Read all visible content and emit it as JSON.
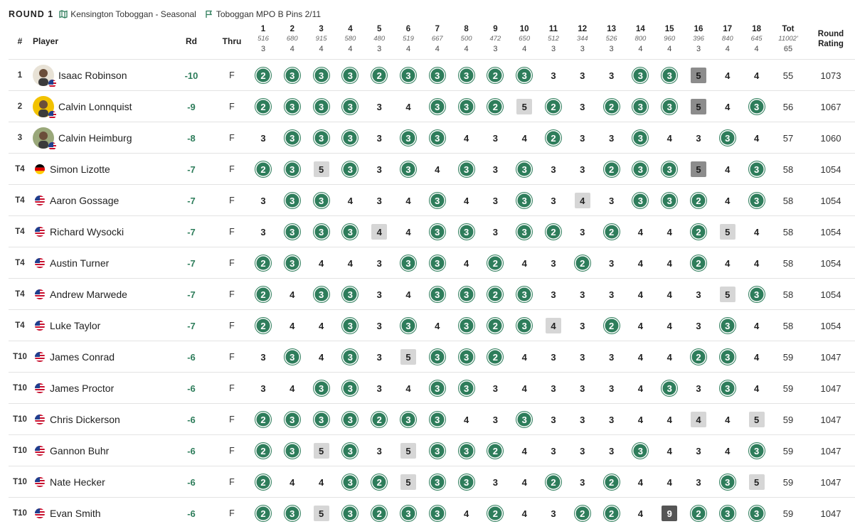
{
  "header": {
    "round": "ROUND 1",
    "course": "Kensington Toboggan - Seasonal",
    "layout": "Toboggan MPO B Pins 2/11",
    "course_icon": "map-icon",
    "layout_icon": "flag-icon"
  },
  "columns": {
    "pos": "#",
    "player": "Player",
    "rd": "Rd",
    "thru": "Thru",
    "tot": "Tot",
    "tot_dist": "11002'",
    "tot_par": "65",
    "rating1": "Round",
    "rating2": "Rating"
  },
  "holes": [
    {
      "n": "1",
      "d": "516",
      "p": "3"
    },
    {
      "n": "2",
      "d": "680",
      "p": "4"
    },
    {
      "n": "3",
      "d": "915",
      "p": "4"
    },
    {
      "n": "4",
      "d": "580",
      "p": "4"
    },
    {
      "n": "5",
      "d": "480",
      "p": "3"
    },
    {
      "n": "6",
      "d": "519",
      "p": "4"
    },
    {
      "n": "7",
      "d": "667",
      "p": "4"
    },
    {
      "n": "8",
      "d": "500",
      "p": "4"
    },
    {
      "n": "9",
      "d": "472",
      "p": "3"
    },
    {
      "n": "10",
      "d": "650",
      "p": "4"
    },
    {
      "n": "11",
      "d": "512",
      "p": "3"
    },
    {
      "n": "12",
      "d": "344",
      "p": "3"
    },
    {
      "n": "13",
      "d": "526",
      "p": "3"
    },
    {
      "n": "14",
      "d": "800",
      "p": "4"
    },
    {
      "n": "15",
      "d": "960",
      "p": "4"
    },
    {
      "n": "16",
      "d": "396",
      "p": "3"
    },
    {
      "n": "17",
      "d": "840",
      "p": "4"
    },
    {
      "n": "18",
      "d": "645",
      "p": "4"
    }
  ],
  "players": [
    {
      "pos": "1",
      "name": "Isaac Robinson",
      "avatar": true,
      "avatar_bg": "#e8e2d6",
      "flag": "us",
      "rd": "-10",
      "thru": "F",
      "scores": [
        2,
        3,
        3,
        3,
        2,
        3,
        3,
        3,
        2,
        3,
        3,
        3,
        3,
        3,
        3,
        5,
        4,
        4
      ],
      "tot": "55",
      "rating": "1073"
    },
    {
      "pos": "2",
      "name": "Calvin Lonnquist",
      "avatar": true,
      "avatar_bg": "#f2c200",
      "flag": "us",
      "rd": "-9",
      "thru": "F",
      "scores": [
        2,
        3,
        3,
        3,
        3,
        4,
        3,
        3,
        2,
        5,
        2,
        3,
        2,
        3,
        3,
        5,
        4,
        3
      ],
      "tot": "56",
      "rating": "1067"
    },
    {
      "pos": "3",
      "name": "Calvin Heimburg",
      "avatar": true,
      "avatar_bg": "#9aa87a",
      "flag": "us",
      "rd": "-8",
      "thru": "F",
      "scores": [
        3,
        3,
        3,
        3,
        3,
        3,
        3,
        4,
        3,
        4,
        2,
        3,
        3,
        3,
        4,
        3,
        3,
        4
      ],
      "tot": "57",
      "rating": "1060"
    },
    {
      "pos": "T4",
      "name": "Simon Lizotte",
      "avatar": false,
      "flag": "de",
      "rd": "-7",
      "thru": "F",
      "scores": [
        2,
        3,
        5,
        3,
        3,
        3,
        4,
        3,
        3,
        3,
        3,
        3,
        2,
        3,
        3,
        5,
        4,
        3
      ],
      "tot": "58",
      "rating": "1054"
    },
    {
      "pos": "T4",
      "name": "Aaron Gossage",
      "avatar": false,
      "flag": "us",
      "rd": "-7",
      "thru": "F",
      "scores": [
        3,
        3,
        3,
        4,
        3,
        4,
        3,
        4,
        3,
        3,
        3,
        4,
        3,
        3,
        3,
        2,
        4,
        3
      ],
      "tot": "58",
      "rating": "1054"
    },
    {
      "pos": "T4",
      "name": "Richard Wysocki",
      "avatar": false,
      "flag": "us",
      "rd": "-7",
      "thru": "F",
      "scores": [
        3,
        3,
        3,
        3,
        4,
        4,
        3,
        3,
        3,
        3,
        2,
        3,
        2,
        4,
        4,
        2,
        5,
        4
      ],
      "tot": "58",
      "rating": "1054"
    },
    {
      "pos": "T4",
      "name": "Austin Turner",
      "avatar": false,
      "flag": "us",
      "rd": "-7",
      "thru": "F",
      "scores": [
        2,
        3,
        4,
        4,
        3,
        3,
        3,
        4,
        2,
        4,
        3,
        2,
        3,
        4,
        4,
        2,
        4,
        4
      ],
      "tot": "58",
      "rating": "1054"
    },
    {
      "pos": "T4",
      "name": "Andrew Marwede",
      "avatar": false,
      "flag": "us",
      "rd": "-7",
      "thru": "F",
      "scores": [
        2,
        4,
        3,
        3,
        3,
        4,
        3,
        3,
        2,
        3,
        3,
        3,
        3,
        4,
        4,
        3,
        5,
        3
      ],
      "tot": "58",
      "rating": "1054"
    },
    {
      "pos": "T4",
      "name": "Luke Taylor",
      "avatar": false,
      "flag": "us",
      "rd": "-7",
      "thru": "F",
      "scores": [
        2,
        4,
        4,
        3,
        3,
        3,
        4,
        3,
        2,
        3,
        4,
        3,
        2,
        4,
        4,
        3,
        3,
        4
      ],
      "tot": "58",
      "rating": "1054"
    },
    {
      "pos": "T10",
      "name": "James Conrad",
      "avatar": false,
      "flag": "us",
      "rd": "-6",
      "thru": "F",
      "scores": [
        3,
        3,
        4,
        3,
        3,
        5,
        3,
        3,
        2,
        4,
        3,
        3,
        3,
        4,
        4,
        2,
        3,
        4
      ],
      "tot": "59",
      "rating": "1047"
    },
    {
      "pos": "T10",
      "name": "James Proctor",
      "avatar": false,
      "flag": "us",
      "rd": "-6",
      "thru": "F",
      "scores": [
        3,
        4,
        3,
        3,
        3,
        4,
        3,
        3,
        3,
        4,
        3,
        3,
        3,
        4,
        3,
        3,
        3,
        4
      ],
      "tot": "59",
      "rating": "1047"
    },
    {
      "pos": "T10",
      "name": "Chris Dickerson",
      "avatar": false,
      "flag": "us",
      "rd": "-6",
      "thru": "F",
      "scores": [
        2,
        3,
        3,
        3,
        2,
        3,
        3,
        4,
        3,
        3,
        3,
        3,
        3,
        4,
        4,
        4,
        4,
        5
      ],
      "tot": "59",
      "rating": "1047"
    },
    {
      "pos": "T10",
      "name": "Gannon Buhr",
      "avatar": false,
      "flag": "us",
      "rd": "-6",
      "thru": "F",
      "scores": [
        2,
        3,
        5,
        3,
        3,
        5,
        3,
        3,
        2,
        4,
        3,
        3,
        3,
        3,
        4,
        3,
        4,
        3
      ],
      "tot": "59",
      "rating": "1047"
    },
    {
      "pos": "T10",
      "name": "Nate Hecker",
      "avatar": false,
      "flag": "us",
      "rd": "-6",
      "thru": "F",
      "scores": [
        2,
        4,
        4,
        3,
        2,
        5,
        3,
        3,
        3,
        4,
        2,
        3,
        2,
        4,
        4,
        3,
        3,
        5
      ],
      "tot": "59",
      "rating": "1047"
    },
    {
      "pos": "T10",
      "name": "Evan Smith",
      "avatar": false,
      "flag": "us",
      "rd": "-6",
      "thru": "F",
      "scores": [
        2,
        3,
        5,
        3,
        2,
        3,
        3,
        4,
        2,
        4,
        3,
        2,
        2,
        4,
        9,
        2,
        3,
        3
      ],
      "tot": "59",
      "rating": "1047"
    }
  ],
  "colors": {
    "birdie": "#2e7d5b",
    "bogey": "#d6d6d6",
    "double_bogey": "#8c8c8c",
    "triple_plus": "#555555",
    "rd_text": "#2e7d5b"
  }
}
